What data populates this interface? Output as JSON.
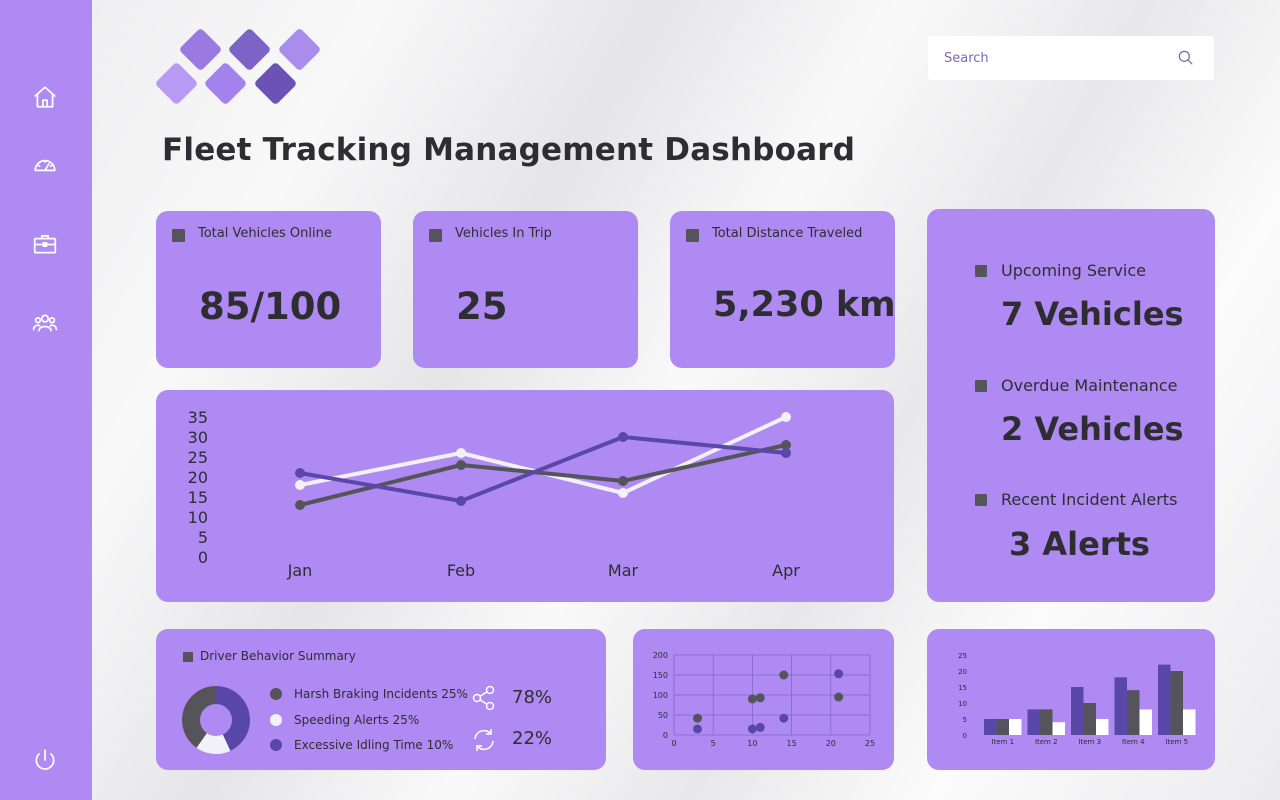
{
  "app": {
    "title": "Fleet Tracking Management Dashboard"
  },
  "sidebar": {
    "items": [
      {
        "icon": "home-icon"
      },
      {
        "icon": "speedometer-icon"
      },
      {
        "icon": "briefcase-icon"
      },
      {
        "icon": "users-icon"
      }
    ],
    "footer_icon": "power-icon"
  },
  "search": {
    "placeholder": "Search",
    "icon": "search-icon"
  },
  "kpis": [
    {
      "label": "Total Vehicles Online",
      "value": "85/100"
    },
    {
      "label": "Vehicles In Trip",
      "value": "25"
    },
    {
      "label": "Total Distance Traveled",
      "value": "5,230 km"
    }
  ],
  "status": [
    {
      "label": "Upcoming Service",
      "value": "7 Vehicles"
    },
    {
      "label": "Overdue Maintenance",
      "value": "2 Vehicles"
    },
    {
      "label": "Recent Incident Alerts",
      "value": "3 Alerts"
    }
  ],
  "driver_behavior": {
    "title": "Driver Behavior Summary",
    "legend": [
      {
        "label": "Harsh Braking Incidents 25%",
        "color": "#54545a"
      },
      {
        "label": "Speeding Alerts 25%",
        "color": "#f3f1f8"
      },
      {
        "label": "Excessive Idling Time 10%",
        "color": "#5a48a8"
      }
    ],
    "stats": [
      {
        "icon": "share-icon",
        "value": "78%"
      },
      {
        "icon": "refresh-icon",
        "value": "22%"
      }
    ]
  },
  "colors": {
    "accent": "#ae8af2",
    "dark": "#54545a",
    "purple": "#5a48a8",
    "light": "#f3f1f8"
  },
  "chart_data": [
    {
      "type": "line",
      "categories": [
        "Jan",
        "Feb",
        "Mar",
        "Apr"
      ],
      "ylim": [
        0,
        35
      ],
      "yticks": [
        35,
        30,
        25,
        20,
        15,
        10,
        5,
        0
      ],
      "series": [
        {
          "color": "#f3f1f8",
          "values": [
            18,
            26,
            16,
            35
          ]
        },
        {
          "color": "#54545a",
          "values": [
            13,
            23,
            19,
            28
          ]
        },
        {
          "color": "#5a48a8",
          "values": [
            21,
            14,
            30,
            26
          ]
        }
      ]
    },
    {
      "type": "scatter",
      "xlim": [
        0,
        25
      ],
      "ylim": [
        0,
        200
      ],
      "xticks": [
        0,
        5,
        10,
        15,
        20,
        25
      ],
      "yticks": [
        0,
        50,
        100,
        150,
        200
      ],
      "grid": true,
      "series": [
        {
          "color": "#54545a",
          "points": [
            [
              3,
              42
            ],
            [
              10,
              90
            ],
            [
              11,
              93
            ],
            [
              14,
              150
            ],
            [
              21,
              95
            ]
          ]
        },
        {
          "color": "#5a48a8",
          "points": [
            [
              3,
              15
            ],
            [
              10,
              15
            ],
            [
              11,
              19
            ],
            [
              14,
              42
            ],
            [
              21,
              153
            ]
          ]
        }
      ]
    },
    {
      "type": "bar",
      "categories": [
        "Item 1",
        "Item 2",
        "Item 3",
        "Item 4",
        "Item 5"
      ],
      "ylim": [
        0,
        25
      ],
      "yticks": [
        0,
        5,
        10,
        15,
        20,
        25
      ],
      "series": [
        {
          "color": "#5a48a8",
          "values": [
            5,
            8,
            15,
            18,
            22
          ]
        },
        {
          "color": "#54545a",
          "values": [
            5,
            8,
            10,
            14,
            20
          ]
        },
        {
          "color": "#ffffff",
          "values": [
            5,
            4,
            5,
            8,
            8
          ]
        }
      ]
    }
  ]
}
